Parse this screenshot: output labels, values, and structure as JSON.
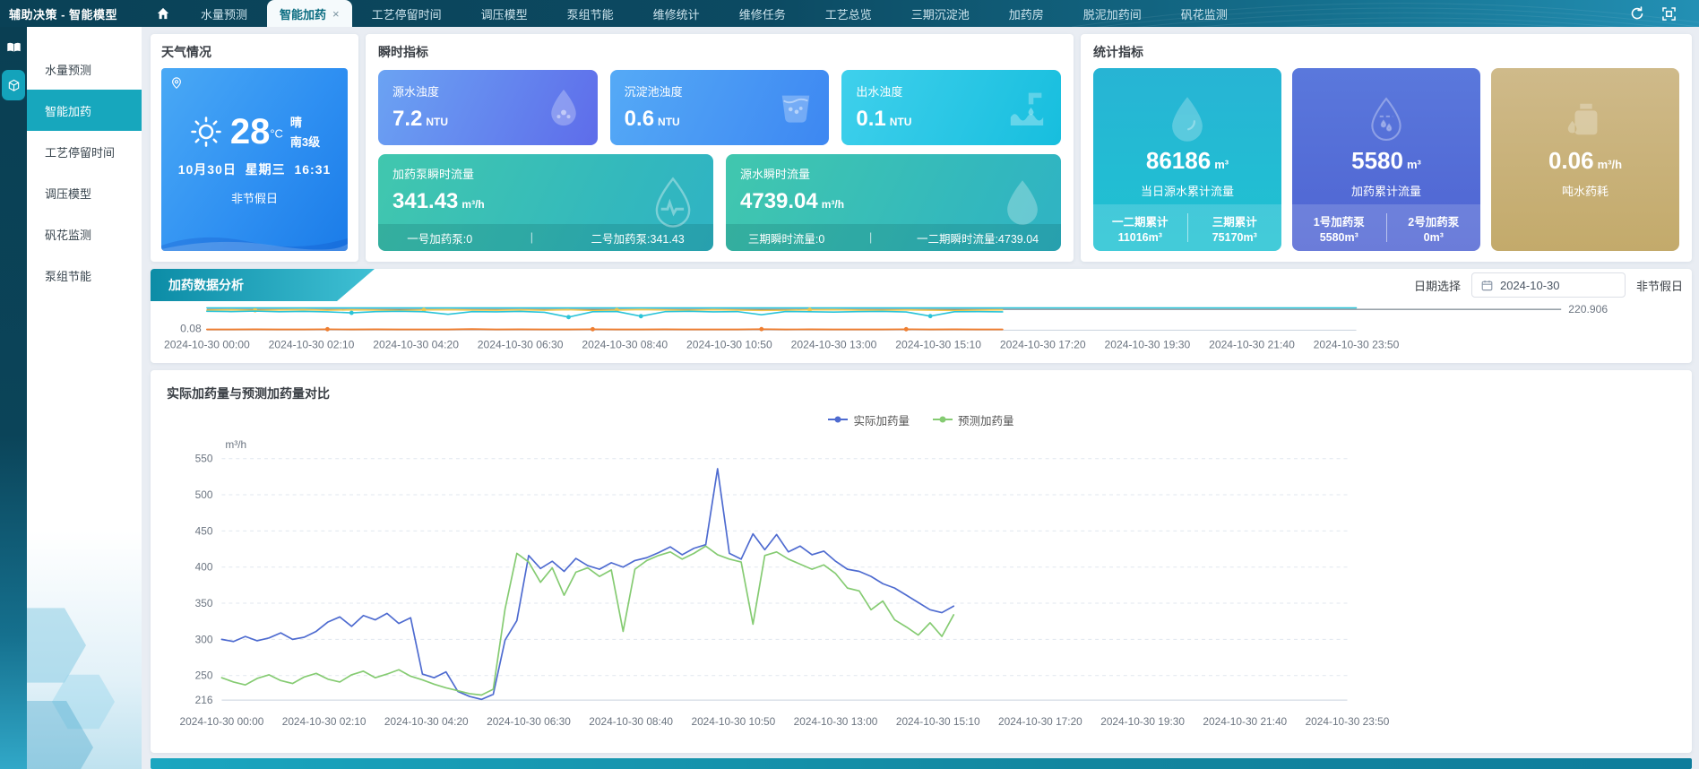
{
  "topbar": {
    "title": "辅助决策 - 智能模型",
    "tabs": [
      {
        "label": "水量预测",
        "active": false
      },
      {
        "label": "智能加药",
        "active": true,
        "closable": true
      },
      {
        "label": "工艺停留时间",
        "active": false
      },
      {
        "label": "调压模型",
        "active": false
      },
      {
        "label": "泵组节能",
        "active": false
      },
      {
        "label": "维修统计",
        "active": false
      },
      {
        "label": "维修任务",
        "active": false
      },
      {
        "label": "工艺总览",
        "active": false
      },
      {
        "label": "三期沉淀池",
        "active": false
      },
      {
        "label": "加药房",
        "active": false
      },
      {
        "label": "脱泥加药间",
        "active": false
      },
      {
        "label": "矾花监测",
        "active": false
      }
    ]
  },
  "sidebar": {
    "items": [
      {
        "label": "水量预测",
        "active": false
      },
      {
        "label": "智能加药",
        "active": true
      },
      {
        "label": "工艺停留时间",
        "active": false
      },
      {
        "label": "调压模型",
        "active": false
      },
      {
        "label": "矾花监测",
        "active": false
      },
      {
        "label": "泵组节能",
        "active": false
      }
    ]
  },
  "weather": {
    "section_title": "天气情况",
    "temperature": "28",
    "temp_unit": "°C",
    "condition": "晴",
    "wind": "南3级",
    "date": "10月30日",
    "weekday": "星期三",
    "time": "16:31",
    "holiday": "非节假日"
  },
  "instant": {
    "section_title": "瞬时指标",
    "turbidity_cards": [
      {
        "label": "源水浊度",
        "value": "7.2",
        "unit": "NTU",
        "icon": "droplet-icon",
        "gradient": [
          "#6ba3f3",
          "#5e6cea"
        ]
      },
      {
        "label": "沉淀池浊度",
        "value": "0.6",
        "unit": "NTU",
        "icon": "cup-icon",
        "gradient": [
          "#55aaf6",
          "#3d87f2"
        ]
      },
      {
        "label": "出水浊度",
        "value": "0.1",
        "unit": "NTU",
        "icon": "outflow-icon",
        "gradient": [
          "#3fd0ec",
          "#17bede"
        ]
      }
    ],
    "flow_cards": [
      {
        "label": "加药泵瞬时流量",
        "value": "341.43",
        "unit": "m³/h",
        "icon": "pulse-droplet-icon",
        "sub_left": "一号加药泵:0",
        "sub_right": "二号加药泵:341.43"
      },
      {
        "label": "源水瞬时流量",
        "value": "4739.04",
        "unit": "m³/h",
        "icon": "droplet-icon",
        "sub_left": "三期瞬时流量:0",
        "sub_right": "一二期瞬时流量:4739.04"
      }
    ]
  },
  "stats": {
    "section_title": "统计指标",
    "cards": [
      {
        "value": "86186",
        "unit": "m³",
        "label": "当日源水累计流量",
        "color": "#22b7d4",
        "sub_left_label": "一二期累计",
        "sub_left_value": "11016m³",
        "sub_right_label": "三期累计",
        "sub_right_value": "75170m³"
      },
      {
        "value": "5580",
        "unit": "m³",
        "label": "加药累计流量",
        "color": "#5068d5",
        "sub_left_label": "1号加药泵",
        "sub_left_value": "5580m³",
        "sub_right_label": "2号加药泵",
        "sub_right_value": "0m³"
      },
      {
        "value": "0.06",
        "unit": "m³/h",
        "label": "吨水药耗",
        "color": "#c9b176"
      }
    ]
  },
  "analysis": {
    "ribbon": "加药数据分析",
    "date_label": "日期选择",
    "date_value": "2024-10-30",
    "holiday": "非节假日"
  },
  "compare": {
    "title": "实际加药量与预测加药量对比"
  },
  "accent_color": "#14a3bb",
  "chart_data": [
    {
      "id": "dosing-trend-mini",
      "type": "line",
      "xlim": [
        0,
        1430
      ],
      "ylim": [
        0,
        240
      ],
      "xtick_step": 130,
      "xticklabels": [
        "2024-10-30 00:00",
        "2024-10-30 02:10",
        "2024-10-30 04:20",
        "2024-10-30 06:30",
        "2024-10-30 08:40",
        "2024-10-30 10:50",
        "2024-10-30 13:00",
        "2024-10-30 15:10",
        "2024-10-30 17:20",
        "2024-10-30 19:30",
        "2024-10-30 21:40",
        "2024-10-30 23:50"
      ],
      "min_label": "0.08",
      "baseline": {
        "value": 220.906,
        "label": "220.906"
      },
      "grid": "none",
      "legend_position": "none",
      "series": [
        {
          "name": "trend-flat-cyan",
          "color": "#2bc4d8",
          "width": 1.4,
          "x_start": 0,
          "x_step": 1430,
          "values": [
            236,
            236
          ]
        },
        {
          "name": "trend-yellow",
          "color": "#f3c64b",
          "width": 1.6,
          "x_start": 0,
          "x_step": 30,
          "markers": [
            2,
            9,
            17,
            25
          ],
          "values": [
            212,
            215,
            210,
            214,
            216,
            211,
            215,
            213,
            209,
            214,
            217,
            213,
            211,
            215,
            212,
            216,
            209,
            213,
            218,
            214,
            211,
            216,
            213,
            209,
            212,
            215,
            217,
            213,
            211,
            214,
            212,
            209,
            213,
            215
          ]
        },
        {
          "name": "trend-cyan",
          "color": "#2bc4d8",
          "width": 1.6,
          "x_start": 0,
          "x_step": 30,
          "markers": [
            6,
            15,
            18,
            30
          ],
          "values": [
            200,
            197,
            202,
            195,
            199,
            194,
            183,
            197,
            200,
            195,
            168,
            197,
            194,
            199,
            189,
            138,
            195,
            198,
            148,
            196,
            200,
            194,
            197,
            163,
            198,
            195,
            192,
            196,
            199,
            193,
            149,
            195,
            197,
            194
          ]
        },
        {
          "name": "trend-orange",
          "color": "#ef7e30",
          "width": 1.8,
          "x_start": 0,
          "x_step": 30,
          "markers": [
            5,
            16,
            23,
            29
          ],
          "values": [
            8,
            8,
            9,
            8,
            8,
            10,
            8,
            9,
            8,
            8,
            8,
            12,
            8,
            9,
            8,
            8,
            10,
            8,
            8,
            9,
            8,
            8,
            8,
            11,
            8,
            9,
            8,
            8,
            8,
            10,
            8,
            9,
            8,
            8
          ]
        }
      ]
    },
    {
      "id": "actual-vs-predicted",
      "type": "line",
      "title": "实际加药量与预测加药量对比",
      "xlabel": "",
      "ylabel": "m³/h",
      "xlim": [
        0,
        1430
      ],
      "ylim": [
        216,
        550
      ],
      "yticks": [
        216,
        250,
        300,
        350,
        400,
        450,
        500,
        550
      ],
      "xtick_step": 130,
      "xticklabels": [
        "2024-10-30 00:00",
        "2024-10-30 02:10",
        "2024-10-30 04:20",
        "2024-10-30 06:30",
        "2024-10-30 08:40",
        "2024-10-30 10:50",
        "2024-10-30 13:00",
        "2024-10-30 15:10",
        "2024-10-30 17:20",
        "2024-10-30 19:30",
        "2024-10-30 21:40",
        "2024-10-30 23:50"
      ],
      "legend_position": "top-center",
      "grid": "dashed-horizontal",
      "series": [
        {
          "name": "实际加药量",
          "color": "#4e6bd0",
          "width": 1.7,
          "x_start": 0,
          "x_step": 15,
          "values": [
            300,
            297,
            304,
            298,
            302,
            309,
            300,
            303,
            311,
            324,
            331,
            318,
            333,
            327,
            336,
            322,
            330,
            252,
            247,
            255,
            228,
            221,
            217,
            224,
            299,
            326,
            416,
            398,
            408,
            394,
            412,
            402,
            397,
            406,
            400,
            409,
            413,
            420,
            428,
            417,
            426,
            431,
            536,
            419,
            411,
            446,
            424,
            445,
            421,
            429,
            417,
            422,
            408,
            397,
            394,
            387,
            377,
            371,
            361,
            351,
            341,
            337,
            346
          ]
        },
        {
          "name": "预测加药量",
          "color": "#85cb72",
          "width": 1.7,
          "x_start": 0,
          "x_step": 15,
          "values": [
            247,
            241,
            237,
            246,
            251,
            243,
            239,
            248,
            253,
            245,
            241,
            251,
            256,
            247,
            252,
            258,
            249,
            244,
            238,
            233,
            229,
            225,
            223,
            231,
            342,
            419,
            407,
            379,
            399,
            361,
            393,
            399,
            387,
            396,
            311,
            397,
            409,
            416,
            421,
            411,
            419,
            429,
            417,
            411,
            407,
            321,
            416,
            421,
            411,
            404,
            397,
            403,
            391,
            371,
            367,
            341,
            353,
            327,
            317,
            306,
            323,
            304,
            334
          ]
        }
      ]
    }
  ]
}
